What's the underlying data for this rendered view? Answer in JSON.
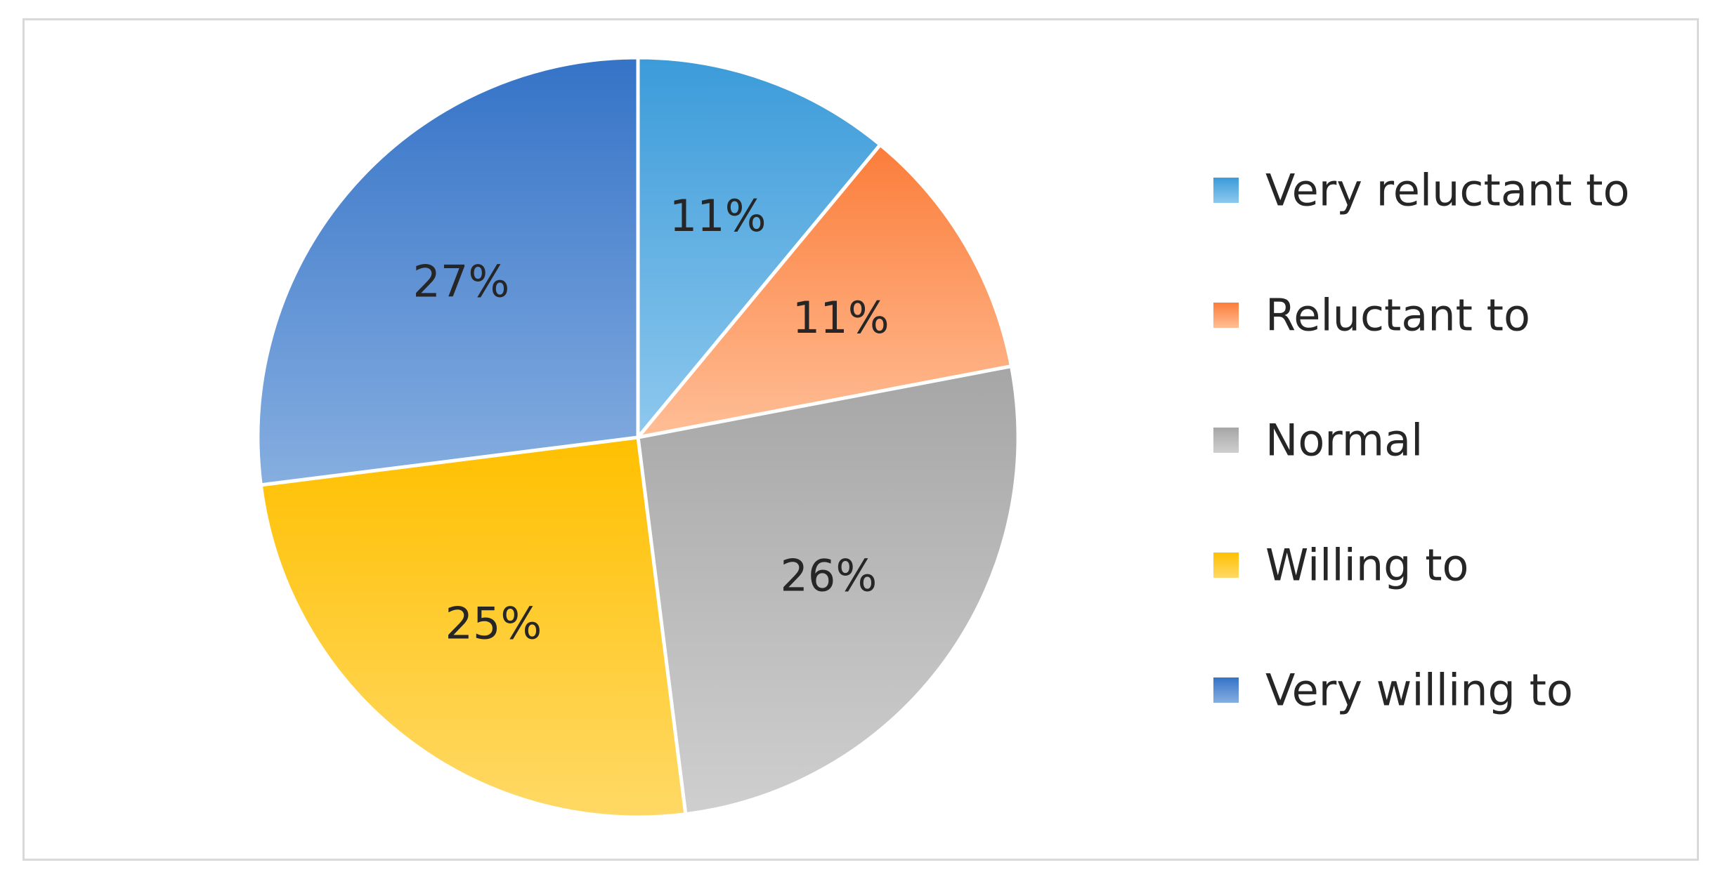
{
  "chart_data": {
    "type": "pie",
    "title": "",
    "categories": [
      "Very reluctant to",
      "Reluctant to",
      "Normal",
      "Willing to",
      "Very willing to"
    ],
    "values": [
      11,
      11,
      26,
      25,
      27
    ],
    "value_labels": [
      "11%",
      "11%",
      "26%",
      "25%",
      "27%"
    ],
    "colors": [
      {
        "light": "#8ec8ee",
        "dark": "#3b9bd9"
      },
      {
        "light": "#ffbe96",
        "dark": "#fb7d3a"
      },
      {
        "light": "#cfcfcf",
        "dark": "#a6a6a6"
      },
      {
        "light": "#ffd966",
        "dark": "#ffc000"
      },
      {
        "light": "#86aee0",
        "dark": "#3573c7"
      }
    ],
    "start_angle_deg": 0,
    "direction": "clockwise",
    "legend": {
      "position": "right",
      "entries": [
        "Very reluctant to",
        "Reluctant to",
        "Normal",
        "Willing to",
        "Very willing to"
      ]
    }
  }
}
